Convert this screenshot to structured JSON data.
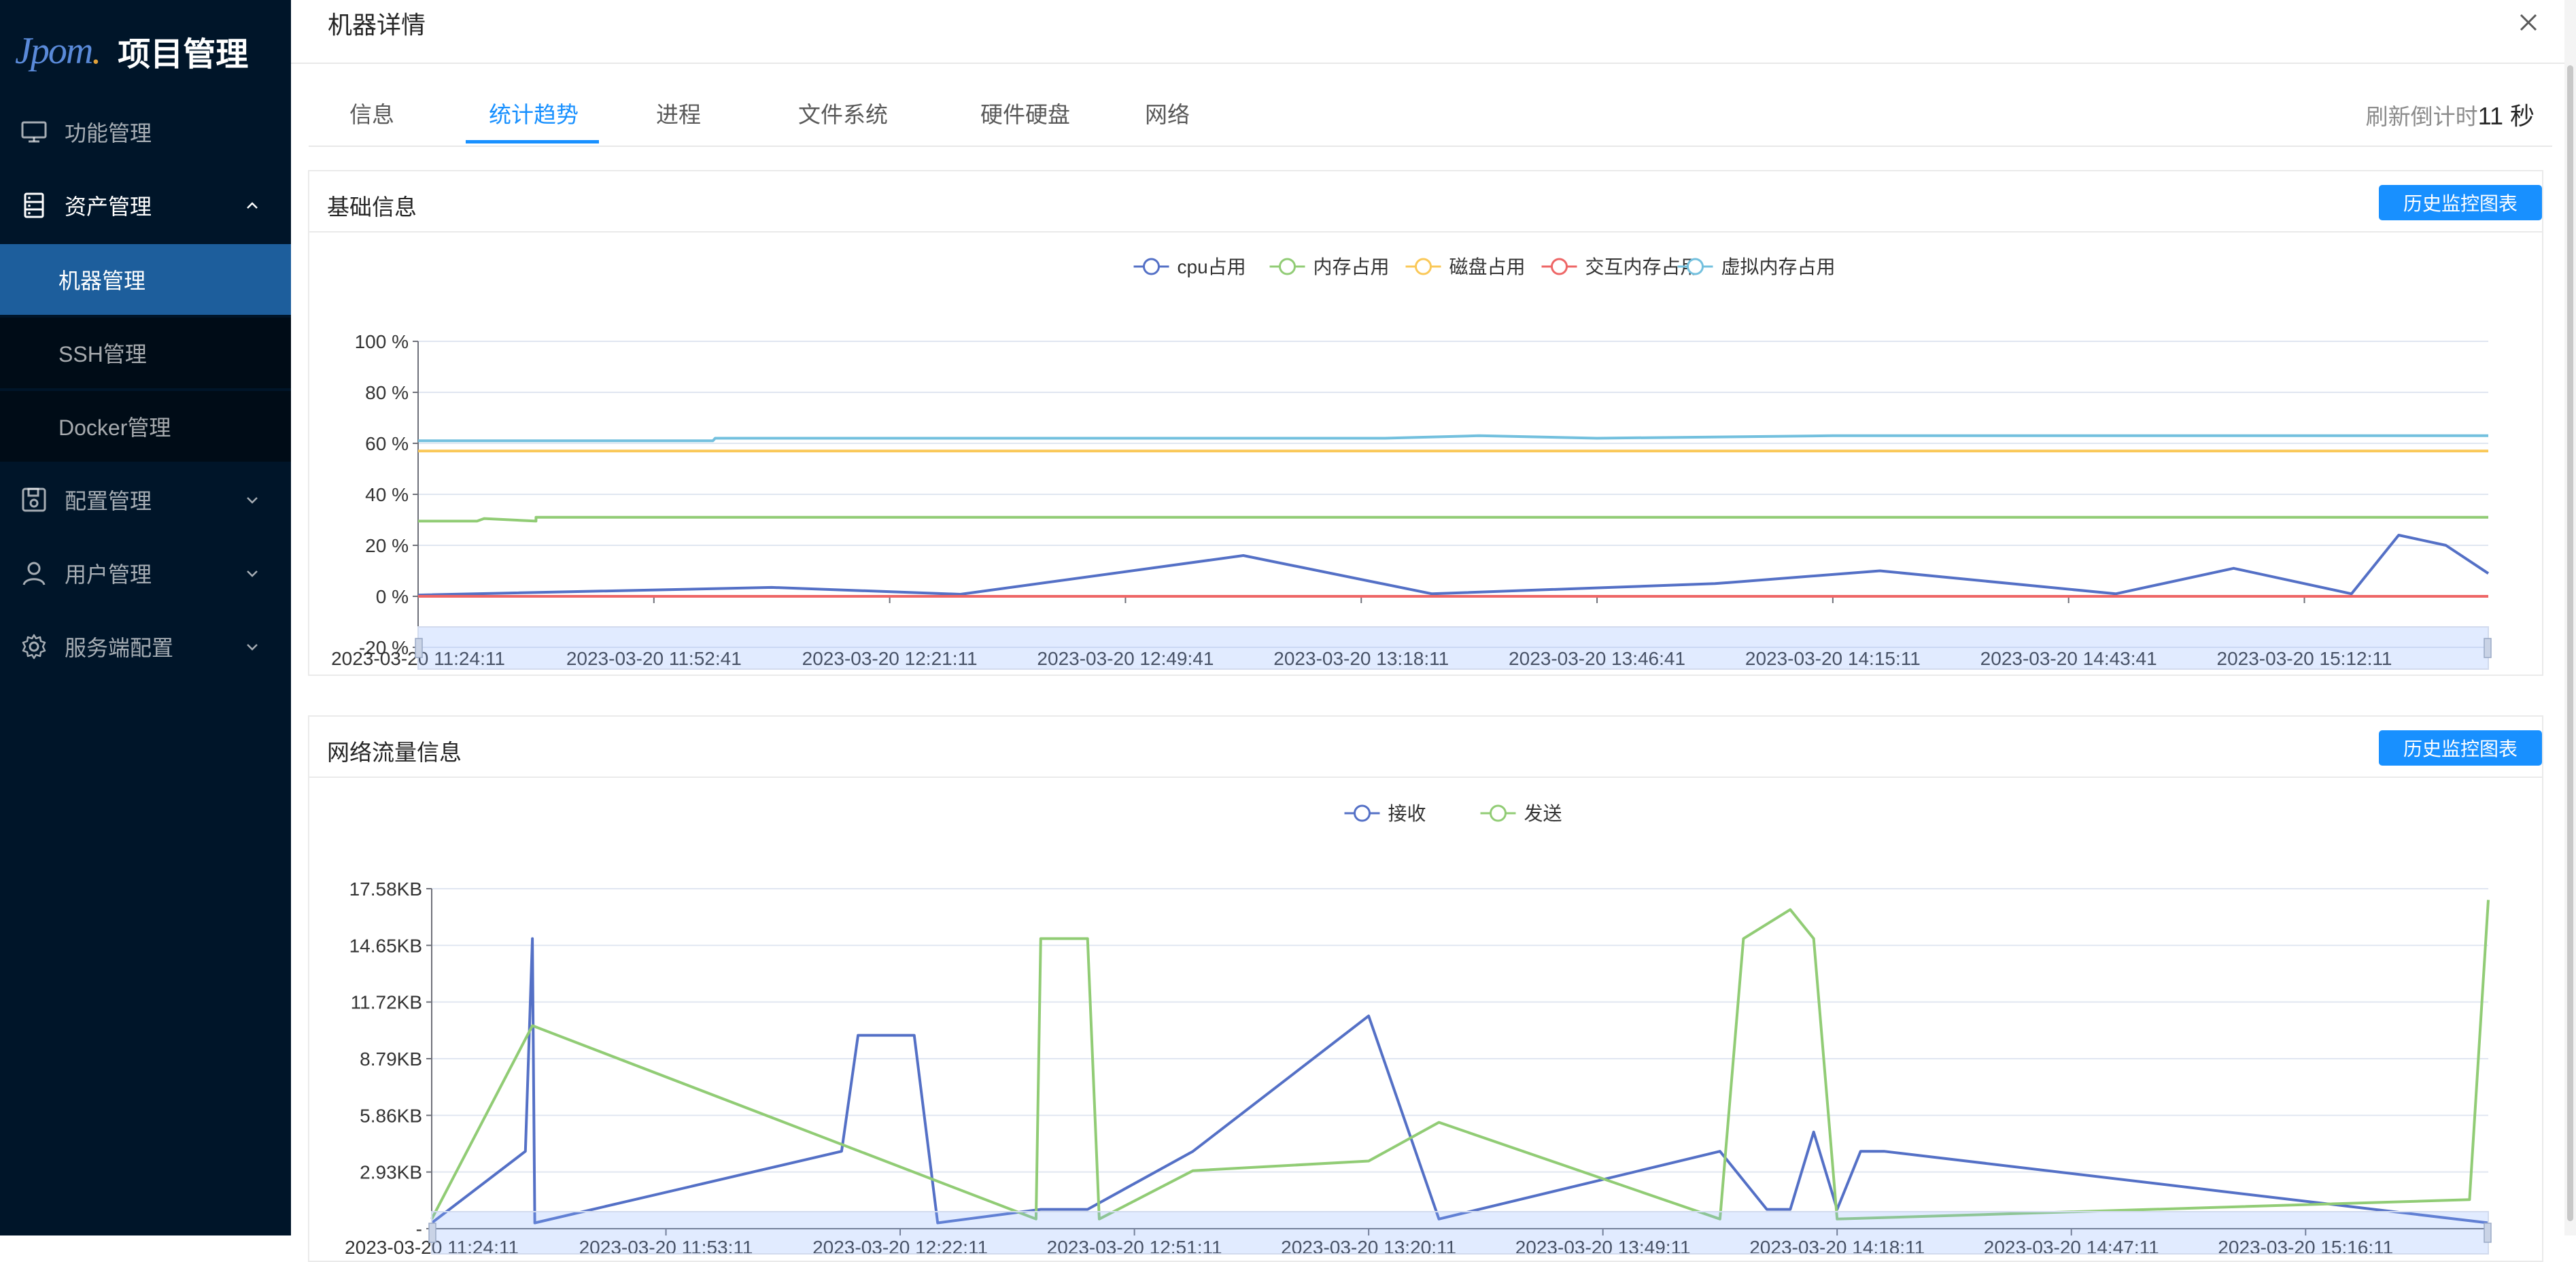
{
  "sidebar": {
    "logo": "Jpom",
    "title": "项目管理",
    "items": [
      {
        "label": "功能管理",
        "icon": "monitor-icon"
      },
      {
        "label": "资产管理",
        "icon": "database-icon"
      },
      {
        "label": "机器管理",
        "active": true
      },
      {
        "label": "SSH管理"
      },
      {
        "label": "Docker管理"
      },
      {
        "label": "配置管理",
        "icon": "save-icon"
      },
      {
        "label": "用户管理",
        "icon": "user-icon"
      },
      {
        "label": "服务端配置",
        "icon": "gear-icon"
      }
    ]
  },
  "dialog": {
    "title": "机器详情",
    "tabs": [
      "信息",
      "统计趋势",
      "进程",
      "文件系统",
      "硬件硬盘",
      "网络"
    ],
    "active_tab": "统计趋势",
    "countdown_label": "刷新倒计时",
    "countdown_value": "11 秒"
  },
  "cards": [
    {
      "title": "基础信息",
      "button": "历史监控图表"
    },
    {
      "title": "网络流量信息",
      "button": "历史监控图表"
    }
  ],
  "chart_data": [
    {
      "type": "line",
      "title": "基础信息",
      "legend": [
        "cpu占用",
        "内存占用",
        "磁盘占用",
        "交互内存占用",
        "虚拟内存占用"
      ],
      "yticks": [
        "100 %",
        "80 %",
        "60 %",
        "40 %",
        "20 %",
        "0 %",
        "-20 %"
      ],
      "ylim": [
        -20,
        100
      ],
      "x_labels": [
        "2023-03-20 11:24:11",
        "2023-03-20 11:52:41",
        "2023-03-20 12:21:11",
        "2023-03-20 12:49:41",
        "2023-03-20 13:18:11",
        "2023-03-20 13:46:41",
        "2023-03-20 14:15:11",
        "2023-03-20 14:43:41",
        "2023-03-20 15:12:11"
      ],
      "legend_position": "top-center",
      "colors": [
        "#5470c6",
        "#91cc75",
        "#fac858",
        "#ee6666",
        "#73c0de"
      ],
      "series": [
        {
          "name": "cpu占用",
          "x": [
            0,
            1.5,
            2.3,
            3.5,
            4.3,
            5.5,
            6.2,
            7.2,
            7.7,
            8.2,
            8.4,
            8.6,
            8.78
          ],
          "values": [
            0.5,
            3.5,
            0.8,
            16,
            1,
            5,
            10,
            1,
            11,
            1,
            24,
            20,
            9
          ]
        },
        {
          "name": "内存占用",
          "x": [
            0,
            0.25,
            0.28,
            0.5,
            0.5,
            8.78
          ],
          "values": [
            29.5,
            29.5,
            30.5,
            29.5,
            31,
            31
          ]
        },
        {
          "name": "磁盘占用",
          "x": [
            0,
            8.78
          ],
          "values": [
            57,
            57
          ]
        },
        {
          "name": "交互内存占用",
          "x": [
            0,
            8.78
          ],
          "values": [
            0,
            0
          ]
        },
        {
          "name": "虚拟内存占用",
          "x": [
            0,
            1.25,
            1.26,
            4.1,
            4.5,
            5.0,
            6.0,
            8.78
          ],
          "values": [
            61,
            61,
            62,
            62,
            63,
            62,
            63,
            63
          ]
        }
      ]
    },
    {
      "type": "line",
      "title": "网络流量信息",
      "legend": [
        "接收",
        "发送"
      ],
      "yticks": [
        "17.58KB",
        "14.65KB",
        "11.72KB",
        "8.79KB",
        "5.86KB",
        "2.93KB",
        "-"
      ],
      "ylim": [
        0,
        17.58
      ],
      "yunit": "KB",
      "x_labels": [
        "2023-03-20 11:24:11",
        "2023-03-20 11:53:11",
        "2023-03-20 12:22:11",
        "2023-03-20 12:51:11",
        "2023-03-20 13:20:11",
        "2023-03-20 13:49:11",
        "2023-03-20 14:18:11",
        "2023-03-20 14:47:11",
        "2023-03-20 15:16:11"
      ],
      "legend_position": "top-center",
      "colors": [
        "#5470c6",
        "#91cc75"
      ],
      "series": [
        {
          "name": "接收",
          "x": [
            0,
            0.4,
            0.43,
            0.44,
            1.75,
            1.82,
            1.96,
            2.06,
            2.16,
            2.6,
            2.8,
            3.25,
            4.0,
            4.3,
            5.5,
            5.7,
            5.8,
            5.9,
            6.0,
            6.1,
            6.2,
            8.78
          ],
          "values": [
            0.3,
            4,
            15,
            0.3,
            4,
            10,
            10,
            10,
            0.3,
            1,
            1,
            4,
            11,
            0.5,
            4,
            1,
            1,
            5,
            1,
            4,
            4,
            0.3
          ]
        },
        {
          "name": "发送",
          "x": [
            0,
            0.43,
            2.58,
            2.6,
            2.8,
            2.85,
            3.25,
            4.0,
            4.3,
            5.5,
            5.6,
            5.8,
            5.9,
            6.0,
            8.7,
            8.78
          ],
          "values": [
            0.5,
            10.5,
            0.5,
            15,
            15,
            0.5,
            3,
            3.5,
            5.5,
            0.5,
            15,
            16.5,
            15,
            0.5,
            1.5,
            17
          ]
        }
      ]
    }
  ]
}
